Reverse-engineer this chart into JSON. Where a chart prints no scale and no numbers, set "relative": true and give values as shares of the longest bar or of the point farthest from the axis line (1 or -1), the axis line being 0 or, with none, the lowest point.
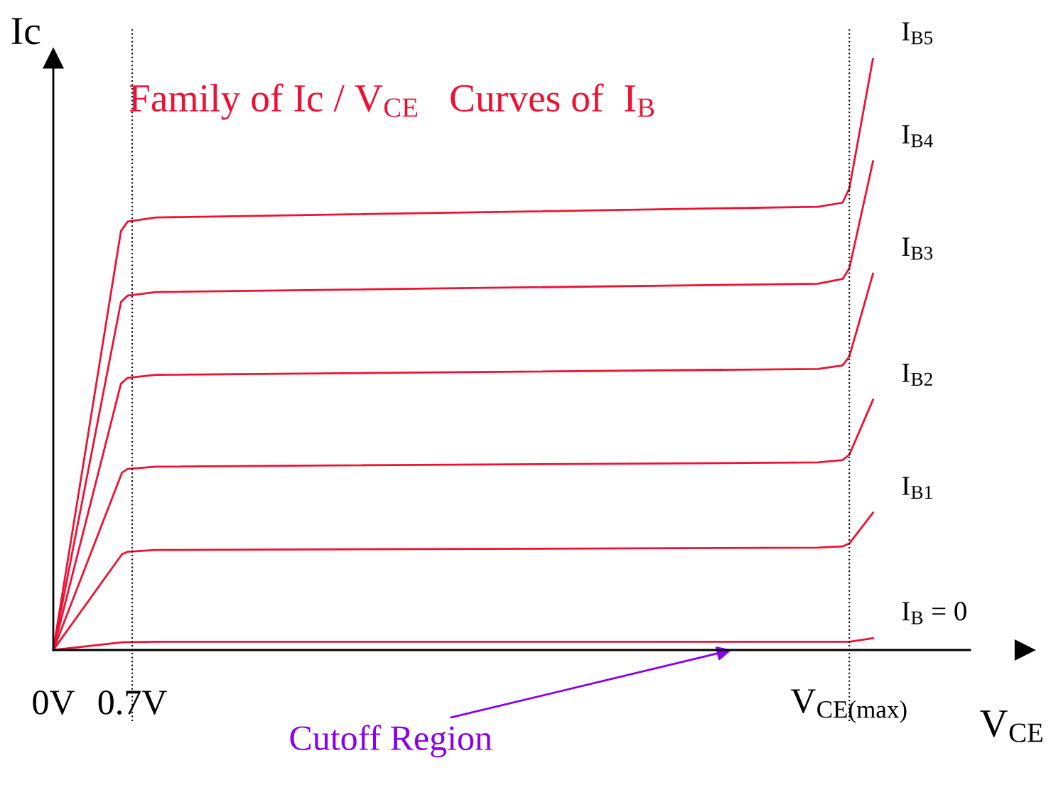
{
  "chart_data": {
    "type": "line",
    "relative": true,
    "title": "Family of Ic / V$_{CE}$   Curves of  I$_{B}$",
    "xlabel": "V$_{CE}$",
    "ylabel": "Ic",
    "xlim": [
      0,
      8.13
    ],
    "xticks": [
      {
        "value": 0,
        "label": "0V"
      },
      {
        "value": 0.7,
        "label": "0.7V"
      },
      {
        "value": 7.06,
        "label": "V$_{CE(max)}$"
      }
    ],
    "grid": false,
    "legend": false,
    "marker": "none",
    "line_style": "solid",
    "ref_lines": [
      {
        "axis": "x",
        "value": 0.7,
        "label": null,
        "color": "#000000",
        "line_style": "dotted"
      },
      {
        "axis": "x",
        "value": 7.06,
        "label": null,
        "color": "#000000",
        "line_style": "dotted"
      }
    ],
    "annotations": [
      "Cutoff Region"
    ],
    "series": [
      {
        "name": "I$_{B5}$",
        "color": "#ee1133",
        "x": [
          0,
          0.6,
          0.66,
          0.91,
          6.78,
          7.0,
          7.06,
          7.27
        ],
        "values": [
          0,
          0.708,
          0.724,
          0.731,
          0.749,
          0.756,
          0.78,
          1
        ]
      },
      {
        "name": "I$_{B4}$",
        "color": "#ee1133",
        "x": [
          0,
          0.6,
          0.66,
          0.91,
          6.78,
          7.0,
          7.06,
          7.27
        ],
        "values": [
          0,
          0.588,
          0.599,
          0.605,
          0.619,
          0.627,
          0.645,
          0.826
        ]
      },
      {
        "name": "I$_{B3}$",
        "color": "#ee1133",
        "x": [
          0,
          0.6,
          0.66,
          0.91,
          6.78,
          7.0,
          7.06,
          7.27
        ],
        "values": [
          0,
          0.45,
          0.46,
          0.465,
          0.475,
          0.481,
          0.496,
          0.636
        ]
      },
      {
        "name": "I$_{B2}$",
        "color": "#ee1133",
        "x": [
          0,
          0.61,
          0.66,
          0.91,
          6.78,
          7.0,
          7.06,
          7.27
        ],
        "values": [
          0,
          0.3,
          0.306,
          0.31,
          0.317,
          0.321,
          0.33,
          0.423
        ]
      },
      {
        "name": "I$_{B1}$",
        "color": "#ee1133",
        "x": [
          0,
          0.61,
          0.66,
          0.91,
          6.78,
          7.0,
          7.06,
          7.27
        ],
        "values": [
          0,
          0.162,
          0.166,
          0.169,
          0.173,
          0.175,
          0.18,
          0.232
        ]
      },
      {
        "name": "I$_{B}$ = 0",
        "color": "#ee1133",
        "x": [
          0,
          0.61,
          0.91,
          6.78,
          7.06,
          7.27
        ],
        "values": [
          0,
          0.013,
          0.014,
          0.014,
          0.014,
          0.02
        ]
      }
    ]
  }
}
